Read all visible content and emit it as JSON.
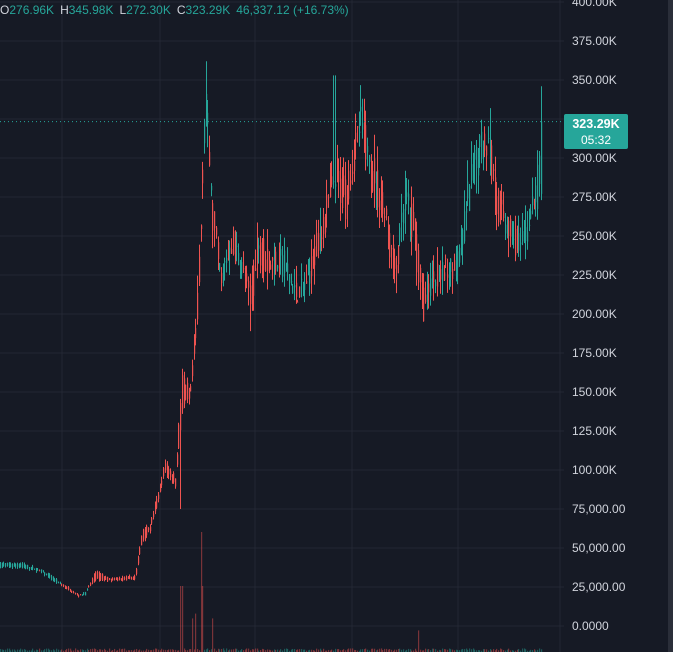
{
  "legend": {
    "open_key": "O",
    "open_val": "276.96K",
    "high_key": "H",
    "high_val": "345.98K",
    "low_key": "L",
    "low_val": "272.30K",
    "close_key": "C",
    "close_val": "323.29K",
    "change": "46,337.12 (+16.73%)"
  },
  "last_price": {
    "label": "323.29K",
    "countdown": "05:32",
    "value": 323290,
    "color": "#26a69a"
  },
  "colors": {
    "background": "#161a25",
    "up": "#26a69a",
    "down": "#ef5350",
    "grid": "#232733",
    "axis_text": "#d1d4dc"
  },
  "chart_data": {
    "type": "candlestick",
    "y_axis": {
      "ticks": [
        0,
        25000,
        50000,
        75000,
        100000,
        125000,
        150000,
        175000,
        200000,
        225000,
        250000,
        275000,
        300000,
        325000,
        350000,
        375000,
        400000
      ],
      "tick_labels": [
        "0.0000",
        "25,000.00",
        "50,000.00",
        "75,000.00",
        "100.00K",
        "125.00K",
        "150.00K",
        "175.00K",
        "200.00K",
        "225.00K",
        "250.00K",
        "275.00K",
        "300.00K",
        "325.00K",
        "350.00K",
        "375.00K",
        "400.00K"
      ],
      "range": [
        0,
        400000
      ],
      "position": "right"
    },
    "grid": true,
    "keyframes": [
      [
        0,
        38000,
        40000
      ],
      [
        20,
        38000,
        40000
      ],
      [
        40,
        35000,
        36000
      ],
      [
        55,
        28000,
        30000
      ],
      [
        65,
        26000,
        24000
      ],
      [
        78,
        20000,
        19000
      ],
      [
        85,
        20000,
        22000
      ],
      [
        95,
        35000,
        30000
      ],
      [
        110,
        30000,
        29000
      ],
      [
        135,
        32000,
        30000
      ],
      [
        142,
        62000,
        55000
      ],
      [
        150,
        65000,
        62000
      ],
      [
        158,
        85000,
        80000
      ],
      [
        165,
        105000,
        100000
      ],
      [
        175,
        95000,
        90000
      ],
      [
        182,
        160000,
        140000
      ],
      [
        190,
        150000,
        145000
      ],
      [
        198,
        215000,
        200000
      ],
      [
        205,
        330000,
        350000
      ],
      [
        212,
        280000,
        260000
      ],
      [
        220,
        220000,
        225000
      ],
      [
        232,
        250000,
        240000
      ],
      [
        240,
        230000,
        235000
      ],
      [
        250,
        215000,
        205000
      ],
      [
        258,
        250000,
        240000
      ],
      [
        270,
        235000,
        230000
      ],
      [
        282,
        230000,
        240000
      ],
      [
        295,
        215000,
        212000
      ],
      [
        305,
        215000,
        220000
      ],
      [
        318,
        250000,
        245000
      ],
      [
        325,
        265000,
        260000
      ],
      [
        335,
        290000,
        285000
      ],
      [
        345,
        280000,
        270000
      ],
      [
        360,
        320000,
        325000
      ],
      [
        368,
        310000,
        300000
      ],
      [
        375,
        290000,
        280000
      ],
      [
        385,
        270000,
        260000
      ],
      [
        395,
        235000,
        220000
      ],
      [
        405,
        270000,
        280000
      ],
      [
        415,
        260000,
        240000
      ],
      [
        423,
        210000,
        200000
      ],
      [
        430,
        215000,
        225000
      ],
      [
        440,
        230000,
        225000
      ],
      [
        452,
        225000,
        230000
      ],
      [
        462,
        240000,
        250000
      ],
      [
        468,
        270000,
        280000
      ],
      [
        478,
        300000,
        310000
      ],
      [
        488,
        320000,
        310000
      ],
      [
        496,
        280000,
        270000
      ],
      [
        505,
        255000,
        260000
      ],
      [
        515,
        250000,
        245000
      ],
      [
        522,
        243000,
        245000
      ],
      [
        530,
        260000,
        265000
      ],
      [
        536,
        270000,
        278000
      ],
      [
        541,
        277000,
        323290
      ]
    ],
    "spikes": [
      {
        "x": 205,
        "high": 362000
      },
      {
        "x": 334,
        "high": 353000
      },
      {
        "x": 363,
        "high": 338000
      },
      {
        "x": 490,
        "high": 332000
      },
      {
        "x": 541,
        "high": 345980
      }
    ],
    "dips": [
      {
        "x": 250,
        "low": 189000
      },
      {
        "x": 423,
        "low": 195000
      },
      {
        "x": 180,
        "low": 75000
      }
    ],
    "volume_spikes": [
      {
        "x": 200,
        "rel": 1.0
      },
      {
        "x": 181,
        "rel": 0.55
      },
      {
        "x": 203,
        "rel": 0.55
      },
      {
        "x": 196,
        "rel": 0.32
      },
      {
        "x": 192,
        "rel": 0.28
      },
      {
        "x": 213,
        "rel": 0.28
      },
      {
        "x": 418,
        "rel": 0.18
      }
    ]
  }
}
